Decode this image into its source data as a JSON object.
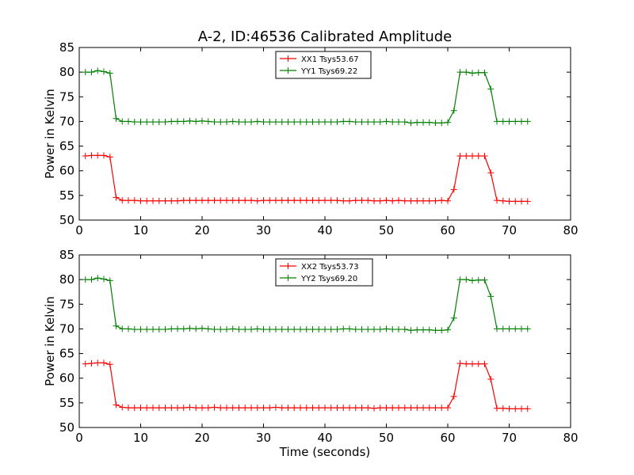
{
  "chart_data": {
    "type": "line",
    "title": "A-2, ID:46536 Calibrated Amplitude",
    "xlabel": "Time (seconds)",
    "xlim": [
      0,
      80
    ],
    "xticks": [
      0,
      10,
      20,
      30,
      40,
      50,
      60,
      70,
      80
    ],
    "colors": {
      "red": "#ff0000",
      "green": "#008000"
    },
    "subplots": [
      {
        "name": "top",
        "ylabel": "Power in Kelvin",
        "ylim": [
          50,
          85
        ],
        "yticks": [
          50,
          55,
          60,
          65,
          70,
          75,
          80,
          85
        ],
        "legend_position": "top-center",
        "series": [
          {
            "name": "XX1 Tsys53.67",
            "color": "#ff0000",
            "x": [
              1,
              2,
              3,
              4,
              5,
              6,
              7,
              8,
              9,
              10,
              11,
              12,
              13,
              14,
              15,
              16,
              17,
              18,
              19,
              20,
              21,
              22,
              23,
              24,
              25,
              26,
              27,
              28,
              29,
              30,
              31,
              32,
              33,
              34,
              35,
              36,
              37,
              38,
              39,
              40,
              41,
              42,
              43,
              44,
              45,
              46,
              47,
              48,
              49,
              50,
              51,
              52,
              53,
              54,
              55,
              56,
              57,
              58,
              59,
              60,
              61,
              62,
              63,
              64,
              65,
              66,
              67,
              68,
              69,
              70,
              71,
              72,
              73
            ],
            "y": [
              63,
              63.1,
              63.1,
              63.1,
              62.8,
              54.6,
              54,
              54,
              54,
              53.9,
              53.9,
              53.9,
              53.9,
              53.9,
              53.9,
              53.9,
              54,
              54,
              54,
              54,
              54,
              54,
              54,
              54,
              54,
              54,
              54,
              54,
              53.9,
              54,
              54,
              54,
              54,
              54,
              54,
              54,
              54,
              54,
              54,
              54,
              54,
              54,
              53.9,
              53.9,
              54,
              54,
              54,
              53.9,
              53.9,
              54,
              53.9,
              54,
              53.9,
              53.9,
              53.9,
              53.9,
              53.9,
              53.9,
              54,
              53.9,
              56.2,
              63,
              63,
              63,
              63,
              63,
              59.6,
              54,
              53.9,
              53.8,
              53.8,
              53.8,
              53.8
            ]
          },
          {
            "name": "YY1 Tsys69.22",
            "color": "#008000",
            "x": [
              1,
              2,
              3,
              4,
              5,
              6,
              7,
              8,
              9,
              10,
              11,
              12,
              13,
              14,
              15,
              16,
              17,
              18,
              19,
              20,
              21,
              22,
              23,
              24,
              25,
              26,
              27,
              28,
              29,
              30,
              31,
              32,
              33,
              34,
              35,
              36,
              37,
              38,
              39,
              40,
              41,
              42,
              43,
              44,
              45,
              46,
              47,
              48,
              49,
              50,
              51,
              52,
              53,
              54,
              55,
              56,
              57,
              58,
              59,
              60,
              61,
              62,
              63,
              64,
              65,
              66,
              67,
              68,
              69,
              70,
              71,
              72,
              73
            ],
            "y": [
              80,
              80,
              80.3,
              80.1,
              79.8,
              70.6,
              70,
              70,
              69.9,
              69.9,
              69.9,
              69.9,
              69.9,
              69.9,
              70,
              70,
              70,
              70.1,
              70,
              70.1,
              70,
              69.9,
              69.9,
              69.9,
              70,
              69.9,
              69.9,
              69.9,
              70,
              69.9,
              69.9,
              69.9,
              69.9,
              69.9,
              69.9,
              69.9,
              69.9,
              69.9,
              69.9,
              69.9,
              69.9,
              69.9,
              70,
              70,
              69.9,
              69.9,
              69.9,
              69.9,
              69.9,
              70,
              69.9,
              69.9,
              69.9,
              69.7,
              69.8,
              69.8,
              69.8,
              69.7,
              69.7,
              69.8,
              72.2,
              80,
              80,
              79.8,
              79.9,
              79.9,
              76.6,
              70,
              70,
              70,
              70,
              70,
              70
            ]
          }
        ]
      },
      {
        "name": "bottom",
        "ylabel": "Power in Kelvin",
        "ylim": [
          50,
          85
        ],
        "yticks": [
          50,
          55,
          60,
          65,
          70,
          75,
          80,
          85
        ],
        "legend_position": "top-center",
        "series": [
          {
            "name": "XX2 Tsys53.73",
            "color": "#ff0000",
            "x": [
              1,
              2,
              3,
              4,
              5,
              6,
              7,
              8,
              9,
              10,
              11,
              12,
              13,
              14,
              15,
              16,
              17,
              18,
              19,
              20,
              21,
              22,
              23,
              24,
              25,
              26,
              27,
              28,
              29,
              30,
              31,
              32,
              33,
              34,
              35,
              36,
              37,
              38,
              39,
              40,
              41,
              42,
              43,
              44,
              45,
              46,
              47,
              48,
              49,
              50,
              51,
              52,
              53,
              54,
              55,
              56,
              57,
              58,
              59,
              60,
              61,
              62,
              63,
              64,
              65,
              66,
              67,
              68,
              69,
              70,
              71,
              72,
              73
            ],
            "y": [
              62.9,
              63,
              63.1,
              63.1,
              62.8,
              54.6,
              54.1,
              54,
              54,
              54,
              54,
              54,
              54,
              54,
              54,
              54,
              54,
              54.1,
              54,
              54,
              54,
              54.1,
              54,
              54,
              54,
              54,
              54,
              54,
              54,
              54,
              54,
              54.1,
              54,
              54,
              54,
              54,
              54,
              54,
              54,
              54,
              54,
              54,
              54,
              54,
              54,
              54,
              54,
              53.9,
              54,
              54,
              54,
              54,
              54,
              54,
              54,
              54,
              54,
              54,
              54,
              54,
              56.3,
              63,
              62.9,
              62.9,
              62.9,
              62.9,
              59.8,
              53.9,
              53.9,
              53.8,
              53.8,
              53.8,
              53.8
            ]
          },
          {
            "name": "YY2 Tsys69.20",
            "color": "#008000",
            "x": [
              1,
              2,
              3,
              4,
              5,
              6,
              7,
              8,
              9,
              10,
              11,
              12,
              13,
              14,
              15,
              16,
              17,
              18,
              19,
              20,
              21,
              22,
              23,
              24,
              25,
              26,
              27,
              28,
              29,
              30,
              31,
              32,
              33,
              34,
              35,
              36,
              37,
              38,
              39,
              40,
              41,
              42,
              43,
              44,
              45,
              46,
              47,
              48,
              49,
              50,
              51,
              52,
              53,
              54,
              55,
              56,
              57,
              58,
              59,
              60,
              61,
              62,
              63,
              64,
              65,
              66,
              67,
              68,
              69,
              70,
              71,
              72,
              73
            ],
            "y": [
              80,
              80,
              80.3,
              80.1,
              79.8,
              70.6,
              70,
              70,
              69.9,
              69.9,
              69.9,
              69.9,
              69.9,
              69.9,
              70,
              70,
              70,
              70.1,
              70,
              70.1,
              70,
              69.9,
              69.9,
              69.9,
              70,
              69.9,
              69.9,
              69.9,
              70,
              69.9,
              69.9,
              69.9,
              69.9,
              69.9,
              69.9,
              69.9,
              69.9,
              69.9,
              69.9,
              69.9,
              69.9,
              69.9,
              70,
              70,
              69.9,
              69.9,
              69.9,
              69.9,
              69.9,
              70,
              69.9,
              69.9,
              69.9,
              69.7,
              69.8,
              69.8,
              69.8,
              69.7,
              69.7,
              69.8,
              72.2,
              80,
              80,
              79.8,
              79.9,
              79.9,
              76.6,
              70,
              70,
              70,
              70,
              70,
              70
            ]
          }
        ]
      }
    ]
  }
}
